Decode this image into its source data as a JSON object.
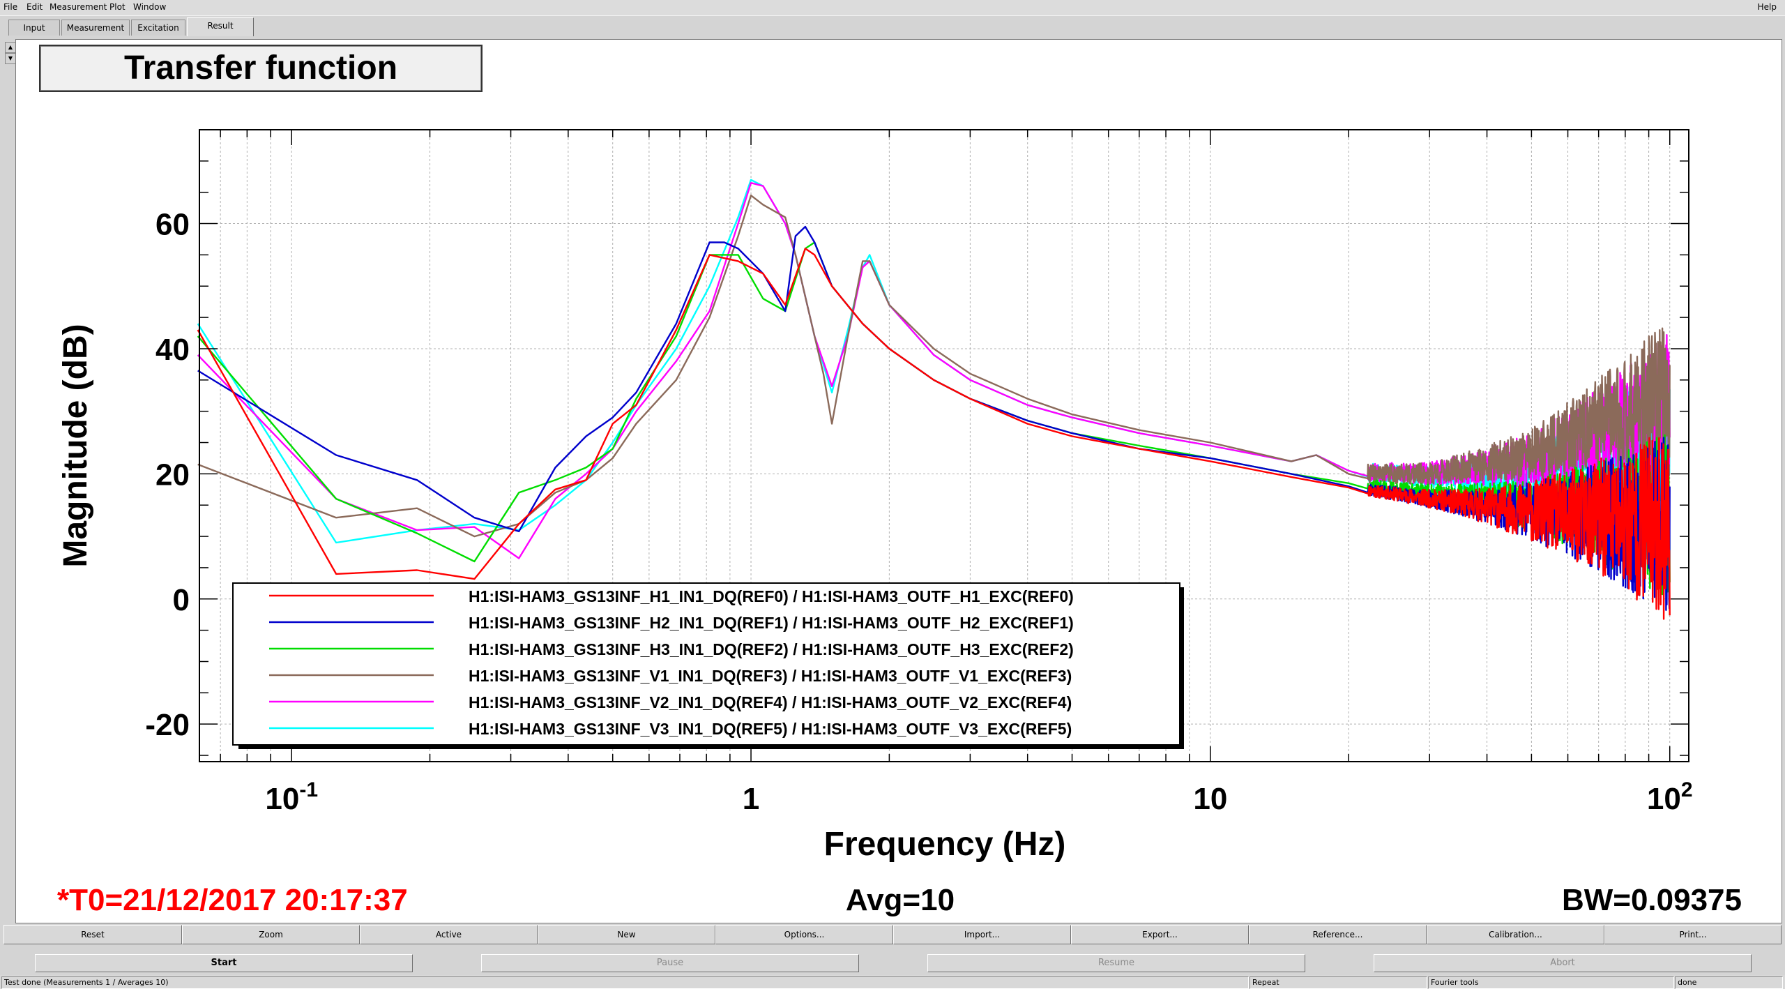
{
  "menu": {
    "items": [
      "File",
      "Edit",
      "Measurement",
      "Plot",
      "Window"
    ],
    "help": "Help"
  },
  "tabs": [
    {
      "label": "Input"
    },
    {
      "label": "Measurement"
    },
    {
      "label": "Excitation"
    },
    {
      "label": "Result",
      "active": true
    }
  ],
  "plot": {
    "title": "Transfer function",
    "t0": "*T0=21/12/2017 20:17:37",
    "avg": "Avg=10",
    "bw": "BW=0.09375"
  },
  "chart_data": {
    "type": "line",
    "title": "Transfer function",
    "xlabel": "Frequency (Hz)",
    "ylabel": "Magnitude (dB)",
    "xscale": "log",
    "xlim": [
      0.063,
      110
    ],
    "ylim": [
      -26,
      75
    ],
    "xticks": [
      {
        "value": 0.1,
        "base": "10",
        "exp": "-1"
      },
      {
        "value": 1,
        "label": "1"
      },
      {
        "value": 10,
        "label": "10"
      },
      {
        "value": 100,
        "base": "10",
        "exp": "2"
      }
    ],
    "yticks": [
      -20,
      0,
      20,
      40,
      60
    ],
    "grid": true,
    "legend_position": "bottom-left",
    "series": [
      {
        "name": "H1:ISI-HAM3_GS13INF_H1_IN1_DQ(REF0) / H1:ISI-HAM3_OUTF_H1_EXC(REF0)",
        "color": "#ff0000",
        "points": [
          [
            0.0625,
            43
          ],
          [
            0.125,
            4
          ],
          [
            0.1875,
            4.6
          ],
          [
            0.25,
            3.2
          ],
          [
            0.3125,
            12
          ],
          [
            0.375,
            17.5
          ],
          [
            0.4375,
            19
          ],
          [
            0.5,
            28
          ],
          [
            0.5625,
            31
          ],
          [
            0.6875,
            43
          ],
          [
            0.8125,
            55
          ],
          [
            0.9375,
            54
          ],
          [
            1.0625,
            52
          ],
          [
            1.1875,
            47
          ],
          [
            1.3125,
            56
          ],
          [
            1.375,
            55
          ],
          [
            1.5,
            50
          ],
          [
            1.75,
            44
          ],
          [
            2,
            40
          ],
          [
            2.5,
            35
          ],
          [
            3,
            32
          ],
          [
            4,
            28
          ],
          [
            5,
            26
          ],
          [
            7,
            24
          ],
          [
            10,
            22
          ],
          [
            15,
            19.5
          ],
          [
            20,
            17.8
          ],
          [
            30,
            16
          ],
          [
            50,
            14
          ],
          [
            70,
            13
          ],
          [
            100,
            12
          ]
        ],
        "noise": {
          "from": 22,
          "amp_low": 1,
          "amp_high": 16,
          "seed": 11
        }
      },
      {
        "name": "H1:ISI-HAM3_GS13INF_H2_IN1_DQ(REF1) / H1:ISI-HAM3_OUTF_H2_EXC(REF1)",
        "color": "#0000cc",
        "points": [
          [
            0.0625,
            36.5
          ],
          [
            0.125,
            23
          ],
          [
            0.1875,
            19
          ],
          [
            0.25,
            13
          ],
          [
            0.3125,
            10.8
          ],
          [
            0.375,
            21
          ],
          [
            0.4375,
            26
          ],
          [
            0.5,
            29
          ],
          [
            0.5625,
            33
          ],
          [
            0.6875,
            44
          ],
          [
            0.8125,
            57
          ],
          [
            0.875,
            57
          ],
          [
            0.9375,
            56
          ],
          [
            1.0625,
            52
          ],
          [
            1.1875,
            46
          ],
          [
            1.25,
            58
          ],
          [
            1.3125,
            59.5
          ],
          [
            1.375,
            57
          ],
          [
            1.5,
            50
          ],
          [
            1.75,
            44
          ],
          [
            2,
            40
          ],
          [
            2.5,
            35
          ],
          [
            3,
            32
          ],
          [
            4,
            28.5
          ],
          [
            5,
            26.5
          ],
          [
            7,
            24
          ],
          [
            10,
            22.5
          ],
          [
            15,
            20
          ],
          [
            20,
            18
          ],
          [
            30,
            16
          ],
          [
            50,
            14
          ],
          [
            70,
            13
          ],
          [
            100,
            12
          ]
        ],
        "noise": {
          "from": 22,
          "amp_low": 1,
          "amp_high": 15,
          "seed": 23
        }
      },
      {
        "name": "H1:ISI-HAM3_GS13INF_H3_IN1_DQ(REF2) / H1:ISI-HAM3_OUTF_H3_EXC(REF2)",
        "color": "#00dd00",
        "points": [
          [
            0.0625,
            42
          ],
          [
            0.125,
            16
          ],
          [
            0.1875,
            10.5
          ],
          [
            0.25,
            6
          ],
          [
            0.3125,
            17
          ],
          [
            0.375,
            19
          ],
          [
            0.4375,
            21
          ],
          [
            0.5,
            24
          ],
          [
            0.5625,
            32
          ],
          [
            0.6875,
            42
          ],
          [
            0.8125,
            55
          ],
          [
            0.9375,
            55
          ],
          [
            1.0625,
            48
          ],
          [
            1.1875,
            46
          ],
          [
            1.3125,
            56
          ],
          [
            1.375,
            57
          ],
          [
            1.5,
            50
          ],
          [
            1.75,
            44
          ],
          [
            2,
            40
          ],
          [
            2.5,
            35
          ],
          [
            3,
            32
          ],
          [
            4,
            28.5
          ],
          [
            5,
            26.5
          ],
          [
            7,
            24.5
          ],
          [
            10,
            22.5
          ],
          [
            15,
            20
          ],
          [
            20,
            18.5
          ],
          [
            30,
            17
          ],
          [
            50,
            15
          ],
          [
            70,
            14
          ],
          [
            100,
            13
          ]
        ],
        "noise": {
          "from": 22,
          "amp_low": 1,
          "amp_high": 14,
          "seed": 37
        }
      },
      {
        "name": "H1:ISI-HAM3_GS13INF_V1_IN1_DQ(REF3) / H1:ISI-HAM3_OUTF_V1_EXC(REF3)",
        "color": "#8b6a5a",
        "points": [
          [
            0.0625,
            21.5
          ],
          [
            0.125,
            13
          ],
          [
            0.1875,
            14.5
          ],
          [
            0.25,
            10
          ],
          [
            0.3125,
            12
          ],
          [
            0.375,
            17
          ],
          [
            0.4375,
            19
          ],
          [
            0.5,
            22.5
          ],
          [
            0.5625,
            28
          ],
          [
            0.6875,
            35
          ],
          [
            0.8125,
            45
          ],
          [
            0.9375,
            58
          ],
          [
            1,
            64.5
          ],
          [
            1.0625,
            63
          ],
          [
            1.1875,
            61
          ],
          [
            1.25,
            55
          ],
          [
            1.375,
            42
          ],
          [
            1.4375,
            36
          ],
          [
            1.5,
            28
          ],
          [
            1.625,
            42
          ],
          [
            1.75,
            54
          ],
          [
            1.8125,
            54
          ],
          [
            2,
            47
          ],
          [
            2.5,
            40
          ],
          [
            3,
            36
          ],
          [
            4,
            32
          ],
          [
            5,
            29.5
          ],
          [
            7,
            27
          ],
          [
            10,
            25
          ],
          [
            15,
            22
          ],
          [
            17,
            23
          ],
          [
            20,
            20
          ],
          [
            30,
            20
          ],
          [
            50,
            23
          ],
          [
            70,
            28
          ],
          [
            100,
            33
          ]
        ],
        "noise": {
          "from": 22,
          "amp_low": 1.5,
          "amp_high": 12,
          "seed": 41
        }
      },
      {
        "name": "H1:ISI-HAM3_GS13INF_V2_IN1_DQ(REF4) / H1:ISI-HAM3_OUTF_V2_EXC(REF4)",
        "color": "#ff00ff",
        "points": [
          [
            0.0625,
            39
          ],
          [
            0.125,
            16
          ],
          [
            0.1875,
            11
          ],
          [
            0.25,
            11.5
          ],
          [
            0.3125,
            6.5
          ],
          [
            0.375,
            16
          ],
          [
            0.4375,
            20
          ],
          [
            0.5,
            24
          ],
          [
            0.5625,
            30
          ],
          [
            0.6875,
            38
          ],
          [
            0.8125,
            46
          ],
          [
            0.9375,
            60
          ],
          [
            1,
            66.5
          ],
          [
            1.0625,
            66
          ],
          [
            1.1875,
            60
          ],
          [
            1.25,
            55
          ],
          [
            1.375,
            42
          ],
          [
            1.5,
            34
          ],
          [
            1.625,
            42
          ],
          [
            1.75,
            53
          ],
          [
            1.8125,
            54
          ],
          [
            2,
            47
          ],
          [
            2.5,
            39
          ],
          [
            3,
            35
          ],
          [
            4,
            31
          ],
          [
            5,
            29
          ],
          [
            7,
            26.5
          ],
          [
            10,
            24.5
          ],
          [
            15,
            22
          ],
          [
            17,
            23
          ],
          [
            20,
            20.5
          ],
          [
            30,
            20
          ],
          [
            50,
            22
          ],
          [
            70,
            26
          ],
          [
            100,
            30
          ]
        ],
        "noise": {
          "from": 22,
          "amp_low": 1.5,
          "amp_high": 13,
          "seed": 53
        }
      },
      {
        "name": "H1:ISI-HAM3_GS13INF_V3_IN1_DQ(REF5) / H1:ISI-HAM3_OUTF_V3_EXC(REF5)",
        "color": "#00ffff",
        "points": [
          [
            0.0625,
            44
          ],
          [
            0.125,
            9
          ],
          [
            0.1875,
            11
          ],
          [
            0.25,
            12
          ],
          [
            0.3125,
            11
          ],
          [
            0.375,
            15
          ],
          [
            0.4375,
            19
          ],
          [
            0.5,
            25
          ],
          [
            0.5625,
            31
          ],
          [
            0.6875,
            40
          ],
          [
            0.8125,
            50
          ],
          [
            0.9375,
            61
          ],
          [
            1,
            67
          ],
          [
            1.0625,
            66
          ],
          [
            1.1875,
            60
          ],
          [
            1.25,
            55
          ],
          [
            1.375,
            42
          ],
          [
            1.5,
            33
          ],
          [
            1.625,
            43
          ],
          [
            1.75,
            53
          ],
          [
            1.8125,
            55
          ],
          [
            2,
            47
          ],
          [
            2.5,
            39
          ],
          [
            3,
            35
          ],
          [
            4,
            31
          ],
          [
            5,
            29
          ],
          [
            7,
            26.5
          ],
          [
            10,
            24.5
          ],
          [
            15,
            22
          ],
          [
            17,
            23
          ],
          [
            20,
            20.5
          ],
          [
            30,
            19.5
          ],
          [
            50,
            20
          ],
          [
            70,
            23
          ],
          [
            100,
            27
          ]
        ],
        "noise": {
          "from": 22,
          "amp_low": 1.5,
          "amp_high": 12,
          "seed": 67
        }
      }
    ]
  },
  "buttons": [
    "Reset",
    "Zoom",
    "Active",
    "New",
    "Options...",
    "Import...",
    "Export...",
    "Reference...",
    "Calibration...",
    "Print..."
  ],
  "controls": [
    {
      "label": "Start",
      "enabled": true
    },
    {
      "label": "Pause",
      "enabled": false
    },
    {
      "label": "Resume",
      "enabled": false
    },
    {
      "label": "Abort",
      "enabled": false
    }
  ],
  "status": {
    "message": "Test done (Measurements 1 / Averages 10)",
    "mode": "Repeat",
    "tools": "Fourier tools",
    "state": "done"
  },
  "colors": {
    "axis": "#000000",
    "grid": "#b0b0b0",
    "t0": "#ff0000",
    "panel": "#d4d4d4"
  }
}
